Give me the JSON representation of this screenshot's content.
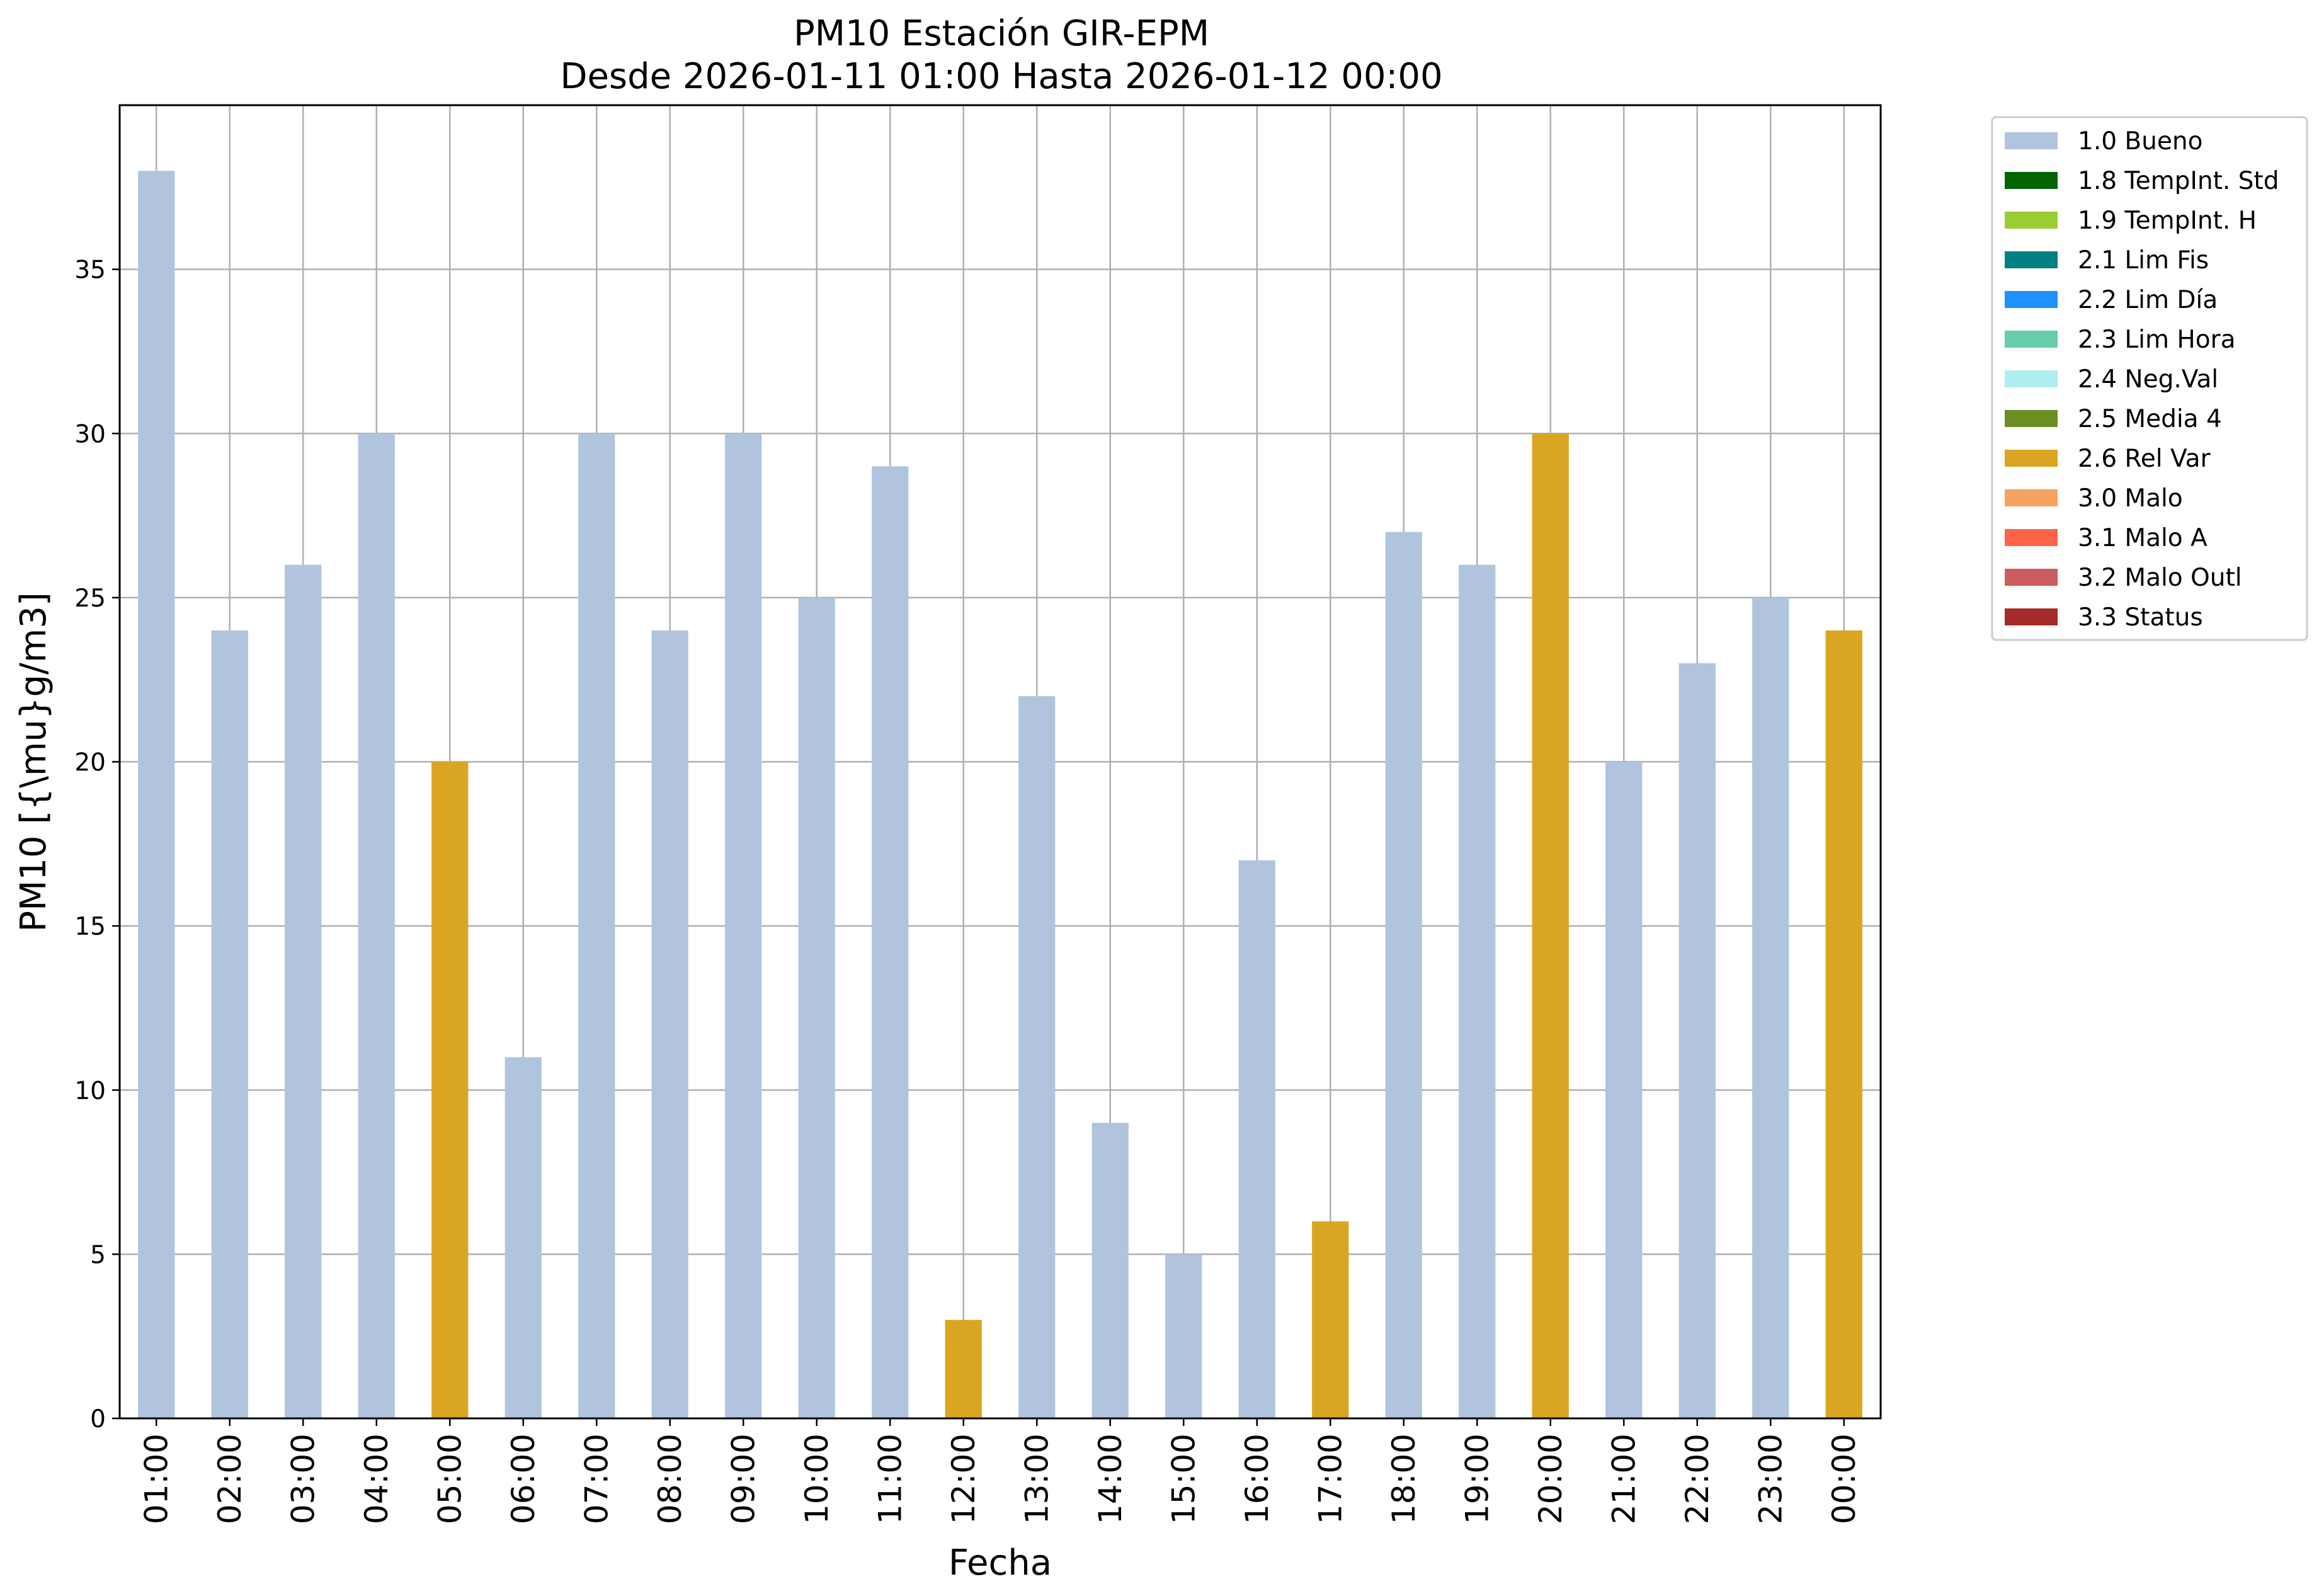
{
  "chart_data": {
    "type": "bar",
    "title": "PM10 Estación GIR-EPM",
    "subtitle": "Desde 2026-01-11 01:00 Hasta 2026-01-12 00:00",
    "xlabel": "Fecha",
    "ylabel": "PM10 [{\\mu}g/m3]",
    "ylim": [
      0,
      40
    ],
    "yticks": [
      0,
      5,
      10,
      15,
      20,
      25,
      30,
      35
    ],
    "grid": true,
    "legend_position": "outside-top-right",
    "categories": [
      "01:00",
      "02:00",
      "03:00",
      "04:00",
      "05:00",
      "06:00",
      "07:00",
      "08:00",
      "09:00",
      "10:00",
      "11:00",
      "12:00",
      "13:00",
      "14:00",
      "15:00",
      "16:00",
      "17:00",
      "18:00",
      "19:00",
      "20:00",
      "21:00",
      "22:00",
      "23:00",
      "00:00"
    ],
    "values": [
      38,
      24,
      26,
      30,
      20,
      11,
      30,
      24,
      30,
      25,
      29,
      3,
      22,
      9,
      5,
      17,
      6,
      27,
      26,
      30,
      20,
      23,
      25,
      24
    ],
    "flags": [
      "1.0 Bueno",
      "1.0 Bueno",
      "1.0 Bueno",
      "1.0 Bueno",
      "2.6 Rel Var",
      "1.0 Bueno",
      "1.0 Bueno",
      "1.0 Bueno",
      "1.0 Bueno",
      "1.0 Bueno",
      "1.0 Bueno",
      "2.6 Rel Var",
      "1.0 Bueno",
      "1.0 Bueno",
      "1.0 Bueno",
      "1.0 Bueno",
      "2.6 Rel Var",
      "1.0 Bueno",
      "1.0 Bueno",
      "2.6 Rel Var",
      "1.0 Bueno",
      "1.0 Bueno",
      "1.0 Bueno",
      "2.6 Rel Var"
    ],
    "legend": [
      {
        "label": "1.0 Bueno",
        "color": "#b0c4de"
      },
      {
        "label": "1.8 TempInt. Std",
        "color": "#006400"
      },
      {
        "label": "1.9 TempInt. H",
        "color": "#9acd32"
      },
      {
        "label": "2.1 Lim Fis",
        "color": "#008080"
      },
      {
        "label": "2.2 Lim Día",
        "color": "#1e90ff"
      },
      {
        "label": "2.3 Lim Hora",
        "color": "#66cdaa"
      },
      {
        "label": "2.4 Neg.Val",
        "color": "#afeeee"
      },
      {
        "label": "2.5 Media 4",
        "color": "#6b8e23"
      },
      {
        "label": "2.6 Rel Var",
        "color": "#daa520"
      },
      {
        "label": "3.0 Malo",
        "color": "#f4a460"
      },
      {
        "label": "3.1 Malo A",
        "color": "#ff6347"
      },
      {
        "label": "3.2 Malo Outl",
        "color": "#cd5c5c"
      },
      {
        "label": "3.3 Status",
        "color": "#a52a2a"
      }
    ]
  }
}
